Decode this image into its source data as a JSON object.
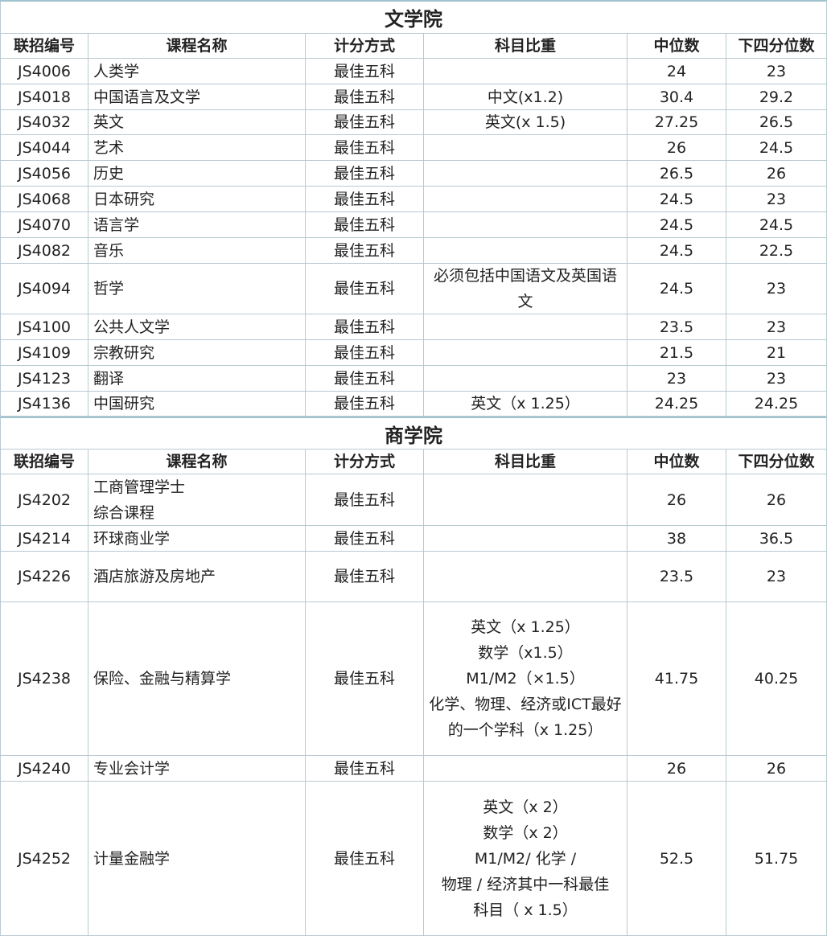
{
  "sections": [
    {
      "title": "文学院",
      "headers": [
        "联招编号",
        "课程名称",
        "计分方式",
        "科目比重",
        "中位数",
        "下四分位数"
      ],
      "rows": [
        [
          "JS4006",
          "人类学",
          "最佳五科",
          null,
          24,
          23
        ],
        [
          "JS4018",
          "中国语言及文学",
          "最佳五科",
          "中文(x1.2)",
          30.4,
          29.2
        ],
        [
          "JS4032",
          "英文",
          "最佳五科",
          "英文(x 1.5)",
          27.25,
          26.5
        ],
        [
          "JS4044",
          "艺术",
          "最佳五科",
          null,
          26,
          24.5
        ],
        [
          "JS4056",
          "历史",
          "最佳五科",
          null,
          26.5,
          26
        ],
        [
          "JS4068",
          "日本研究",
          "最佳五科",
          null,
          24.5,
          23
        ],
        [
          "JS4070",
          "语言学",
          "最佳五科",
          null,
          24.5,
          24.5
        ],
        [
          "JS4082",
          "音乐",
          "最佳五科",
          null,
          24.5,
          22.5
        ],
        [
          "JS4094",
          "哲学",
          "最佳五科",
          "必须包括中国语文及英国语文",
          24.5,
          23
        ],
        [
          "JS4100",
          "公共人文学",
          "最佳五科",
          null,
          23.5,
          23
        ],
        [
          "JS4109",
          "宗教研究",
          "最佳五科",
          null,
          21.5,
          21
        ],
        [
          "JS4123",
          "翻译",
          "最佳五科",
          null,
          23,
          23
        ],
        [
          "JS4136",
          "中国研究",
          "最佳五科",
          "英文（x 1.25）",
          24.25,
          24.25
        ]
      ]
    },
    {
      "title": "商学院",
      "headers": [
        "联招编号",
        "课程名称",
        "计分方式",
        "科目比重",
        "中位数",
        "下四分位数"
      ],
      "rows": [
        [
          "JS4202",
          [
            "工商管理学士",
            "综合课程"
          ],
          "最佳五科",
          null,
          26,
          26
        ],
        [
          "JS4214",
          "环球商业学",
          "最佳五科",
          null,
          38,
          36.5
        ],
        [
          "JS4226",
          "酒店旅游及房地产",
          "最佳五科",
          null,
          23.5,
          23
        ],
        [
          "JS4238",
          "保险、金融与精算学",
          "最佳五科",
          [
            "英文（x 1.25）",
            "数学（x1.5）",
            "M1/M2（×1.5）",
            "化学、物理、经济或ICT最好的一个学科（x 1.25）"
          ],
          41.75,
          40.25
        ],
        [
          "JS4240",
          "专业会计学",
          "最佳五科",
          null,
          26,
          26
        ],
        [
          "JS4252",
          "计量金融学",
          "最佳五科",
          [
            "英文（x 2）",
            "数学（x 2）",
            "M1/M2/ 化学 /",
            "物理 / 经济其中一科最佳",
            "科目（ x 1.5）"
          ],
          52.5,
          51.75
        ]
      ]
    }
  ]
}
